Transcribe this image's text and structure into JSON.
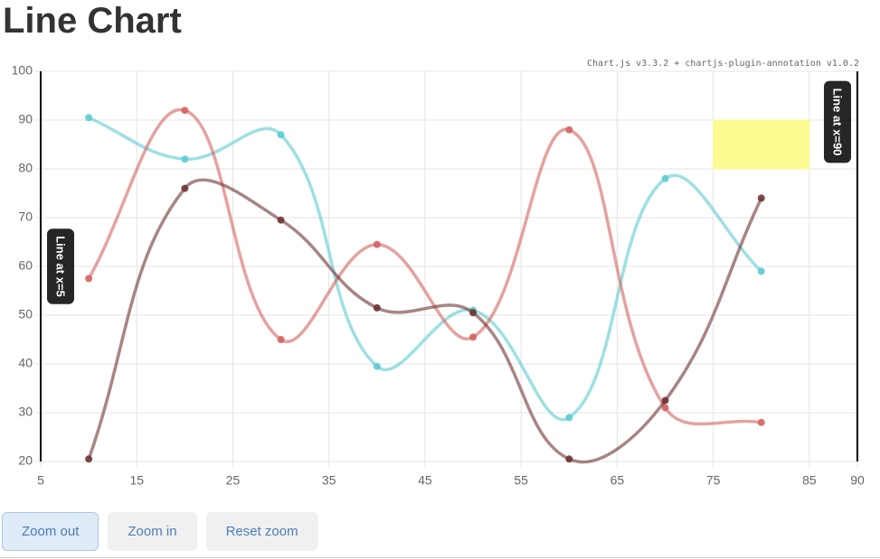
{
  "page": {
    "heading": "Line Chart",
    "credit": "Chart.js v3.3.2 + chartjs-plugin-annotation v1.0.2",
    "buttons": [
      "Zoom out",
      "Zoom in",
      "Reset zoom"
    ]
  },
  "chart_data": {
    "type": "line",
    "x": [
      10,
      20,
      30,
      40,
      50,
      60,
      70,
      80
    ],
    "series": [
      {
        "color": "#5ccbd0",
        "values": [
          90.5,
          82,
          87,
          39.5,
          51,
          29,
          78,
          59
        ]
      },
      {
        "color": "#d4645f",
        "values": [
          57.5,
          92,
          45,
          64.5,
          45.5,
          88,
          31,
          28
        ]
      },
      {
        "color": "#6e3434",
        "values": [
          20.5,
          76,
          69.5,
          51.5,
          50.5,
          20.5,
          32.5,
          74
        ]
      }
    ],
    "xlim": [
      5,
      90
    ],
    "xticks": [
      5,
      15,
      25,
      35,
      45,
      55,
      65,
      75,
      85,
      90
    ],
    "ylim": [
      20,
      100
    ],
    "yticks": [
      20,
      30,
      40,
      50,
      60,
      70,
      80,
      90,
      100
    ],
    "grid": true,
    "annotations": {
      "lines": [
        {
          "value": 5,
          "label": "Line at x=5"
        },
        {
          "value": 90,
          "label": "Line at x=90"
        }
      ],
      "box": {
        "xmin": 75,
        "xmax": 85,
        "ymin": 80,
        "ymax": 90,
        "color": "#fbfb92"
      }
    }
  }
}
